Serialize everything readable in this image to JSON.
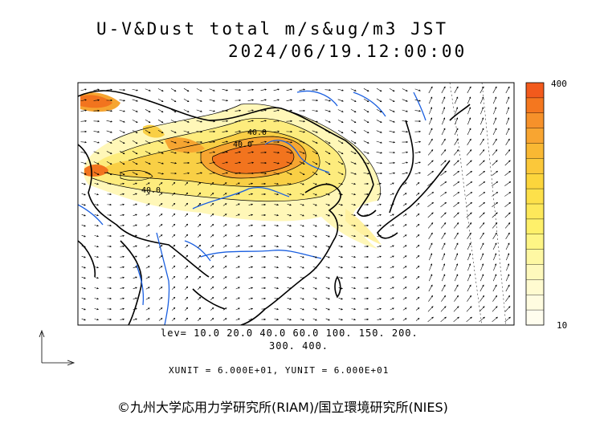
{
  "title": {
    "line1": "U-V&Dust total m/s&ug/m3 JST",
    "line2": "2024/06/19.12:00:00"
  },
  "colorbar": {
    "max_label": "400",
    "min_label": "10",
    "colors": [
      "#f25a1c",
      "#f4771f",
      "#f6912a",
      "#f8a531",
      "#f9b833",
      "#fbc83a",
      "#fcd53c",
      "#fde04a",
      "#fde85a",
      "#fef06a",
      "#fef585",
      "#fef8a3",
      "#fef9bc",
      "#fffbd0",
      "#fffce0",
      "#fffdee"
    ]
  },
  "levels": {
    "line1": "lev= 10.0 20.0 40.0 60.0 100. 150. 200.",
    "line2": "300. 400."
  },
  "units": "XUNIT = 6.000E+01, YUNIT = 6.000E+01",
  "credit": "©九州大学応用力学研究所(RIAM)/国立環境研究所(NIES)",
  "contour_labels": [
    "40.0",
    "40.0",
    "40.0"
  ],
  "colors": {
    "coast": "#000000",
    "river": "#1a5fe0",
    "border": "#000000"
  }
}
